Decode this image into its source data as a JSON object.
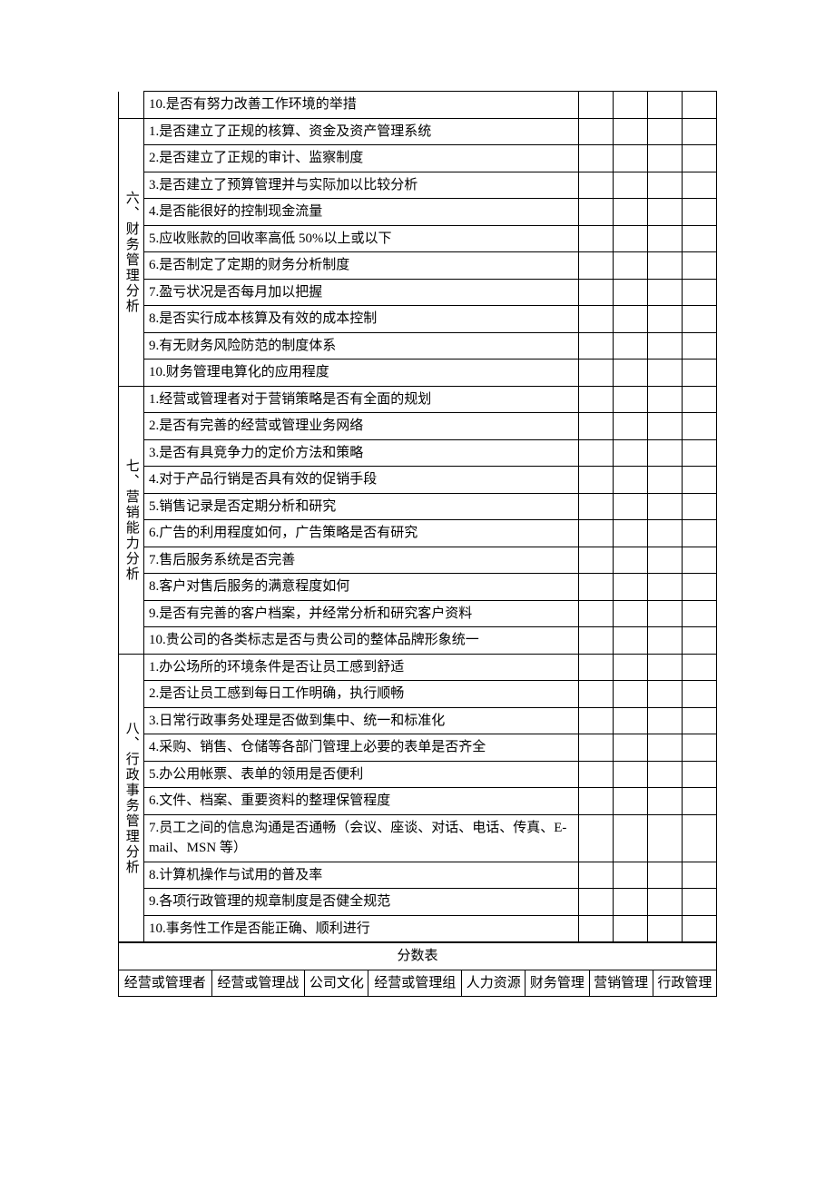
{
  "colors": {
    "border": "#000000",
    "text": "#000000",
    "bg": "#ffffff"
  },
  "typography": {
    "family": "SimSun",
    "size_pt": 11,
    "line_height": 1.5
  },
  "layout": {
    "col_widths_ratio": [
      0.065,
      0.6,
      0.06,
      0.06,
      0.06,
      0.06,
      0.06
    ]
  },
  "orphan_row": "10.是否有努力改善工作环境的举措",
  "sections": [
    {
      "heading": "六、财务管理分析",
      "items": [
        "1.是否建立了正规的核算、资金及资产管理系统",
        "2.是否建立了正规的审计、监察制度",
        "3.是否建立了预算管理并与实际加以比较分析",
        "4.是否能很好的控制现金流量",
        "5.应收账款的回收率高低 50%以上或以下",
        "6.是否制定了定期的财务分析制度",
        "7.盈亏状况是否每月加以把握",
        "8.是否实行成本核算及有效的成本控制",
        "9.有无财务风险防范的制度体系",
        "10.财务管理电算化的应用程度"
      ]
    },
    {
      "heading": "七、营销能力分析",
      "items": [
        "1.经营或管理者对于营销策略是否有全面的规划",
        "2.是否有完善的经营或管理业务网络",
        "3.是否有具竞争力的定价方法和策略",
        "4.对于产品行销是否具有效的促销手段",
        "5.销售记录是否定期分析和研究",
        "6.广告的利用程度如何，广告策略是否有研究",
        "7.售后服务系统是否完善",
        "8.客户对售后服务的满意程度如何",
        "9.是否有完善的客户档案，并经常分析和研究客户资料",
        "10.贵公司的各类标志是否与贵公司的整体品牌形象统一"
      ]
    },
    {
      "heading": "八、行政事务管理分析",
      "items": [
        "1.办公场所的环境条件是否让员工感到舒适",
        "2.是否让员工感到每日工作明确，执行顺畅",
        "3.日常行政事务处理是否做到集中、统一和标准化",
        "4.采购、销售、仓储等各部门管理上必要的表单是否齐全",
        "5.办公用帐票、表单的领用是否便利",
        "6.文件、档案、重要资料的整理保管程度",
        "7.员工之间的信息沟通是否通畅（会议、座谈、对话、电话、传真、E-mail、MSN 等）",
        "8.计算机操作与试用的普及率",
        "9.各项行政管理的规章制度是否健全规范",
        "10.事务性工作是否能正确、顺利进行"
      ]
    }
  ],
  "score_table": {
    "title": "分数表",
    "headers": [
      "经营或管理者",
      "经营或管理战",
      "公司文化",
      "经营或管理组",
      "人力资源",
      "财务管理",
      "营销管理",
      "行政管理"
    ]
  }
}
